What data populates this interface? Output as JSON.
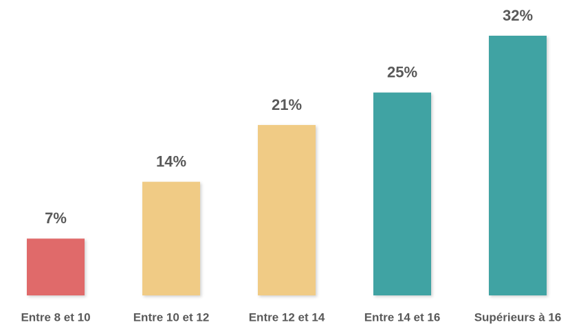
{
  "chart_data": {
    "type": "bar",
    "categories": [
      "Entre 8 et 10",
      "Entre 10 et 12",
      "Entre 12 et 14",
      "Entre 14 et 16",
      "Supérieurs à 16"
    ],
    "values": [
      7,
      14,
      21,
      25,
      32
    ],
    "value_labels": [
      "7%",
      "14%",
      "21%",
      "25%",
      "32%"
    ],
    "colors": [
      "#e06b6b",
      "#f0cb85",
      "#f0cb85",
      "#41a3a3",
      "#41a3a3"
    ]
  }
}
